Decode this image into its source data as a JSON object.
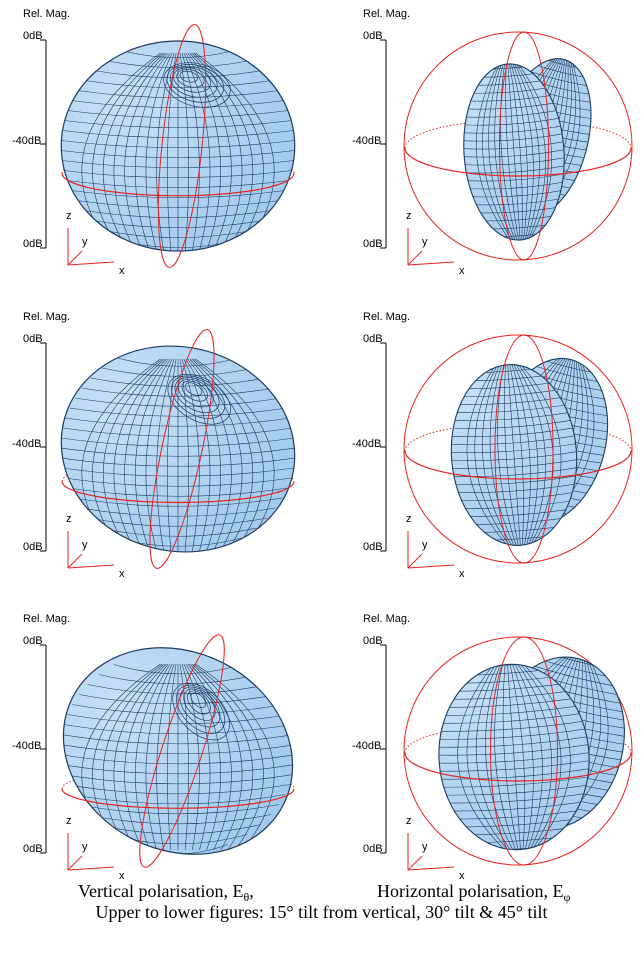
{
  "panels": [
    {
      "id": "p1",
      "column": "vertical",
      "tilt": 15
    },
    {
      "id": "p2",
      "column": "horizontal",
      "tilt": 15
    },
    {
      "id": "p3",
      "column": "vertical",
      "tilt": 30
    },
    {
      "id": "p4",
      "column": "horizontal",
      "tilt": 30
    },
    {
      "id": "p5",
      "column": "vertical",
      "tilt": 45
    },
    {
      "id": "p6",
      "column": "horizontal",
      "tilt": 45
    }
  ],
  "labels": {
    "rel_mag": "Rel. Mag.",
    "top_db": "0dB",
    "mid_db": "-40dB",
    "bottom_db": "0dB",
    "axis_z": "z",
    "axis_y": "y",
    "axis_x": "x"
  },
  "caption": {
    "left_main": "Vertical polarisation, E",
    "left_sub": "θ",
    "left_tail": ",",
    "right_main": "Horizontal polarisation, E",
    "right_sub": "φ",
    "line2": "Upper to lower figures: 15° tilt from vertical, 30° tilt & 45° tilt"
  },
  "colors": {
    "surface_fill": "#9fc8ec",
    "surface_light": "#c6e0f6",
    "mesh": "#1c3b63",
    "ring": "#e8231f",
    "axis": "#000000",
    "triad": "#e8231f"
  }
}
